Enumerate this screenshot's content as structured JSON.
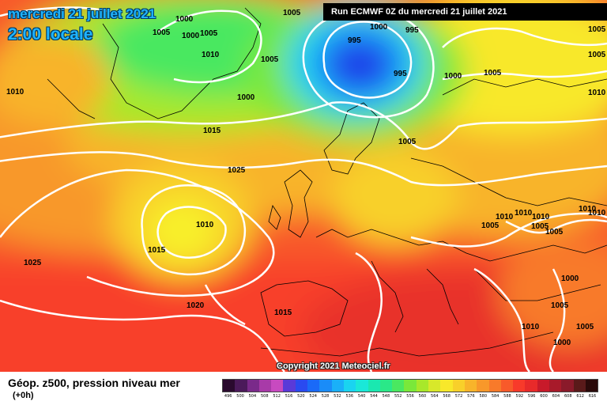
{
  "header": {
    "date": "mercredi 21 juillet 2021",
    "local_time": "2:00 locale",
    "run_banner": "Run ECMWF 0Z du mercredi 21 juillet 2021"
  },
  "copyright": "Copyright 2021 Meteociel.fr",
  "legend": {
    "title": "Géop. z500, pression niveau mer",
    "subtitle": "(+0h)",
    "ticks": [
      "496",
      "500",
      "504",
      "508",
      "512",
      "516",
      "520",
      "524",
      "528",
      "532",
      "536",
      "540",
      "544",
      "548",
      "552",
      "556",
      "560",
      "564",
      "568",
      "572",
      "576",
      "580",
      "584",
      "588",
      "592",
      "596",
      "600",
      "604",
      "608",
      "612",
      "616"
    ],
    "colors": [
      "#2a0a2e",
      "#4b1a5a",
      "#7a2a8a",
      "#a83aa8",
      "#c84ac0",
      "#5a3ad8",
      "#2a4af0",
      "#1a6af8",
      "#1a8cf8",
      "#1ab0f8",
      "#1ad4f0",
      "#1ae8d8",
      "#1ae8b0",
      "#2ae888",
      "#4ae860",
      "#7ae83a",
      "#a8e82a",
      "#d8e82a",
      "#f8e82a",
      "#f8d02a",
      "#f8b42a",
      "#f8982a",
      "#f87a2a",
      "#f85a2a",
      "#f83a2a",
      "#e82a2a",
      "#c81a2a",
      "#a81a2a",
      "#8a1a2a",
      "#5a1a1a",
      "#2a0a0a"
    ]
  },
  "isobar_labels": [
    "1000",
    "1005",
    "1000",
    "1005",
    "1010",
    "1005",
    "1000",
    "995",
    "995",
    "1000",
    "995",
    "1000",
    "1005",
    "1005",
    "1005",
    "1010",
    "1015",
    "1025",
    "1010",
    "1015",
    "1025",
    "1020",
    "1015",
    "1005",
    "1010",
    "1010",
    "1010",
    "1005",
    "1005",
    "1005",
    "1010",
    "1000",
    "1005",
    "1010",
    "1005",
    "1000",
    "1010",
    "1005",
    "1010"
  ]
}
